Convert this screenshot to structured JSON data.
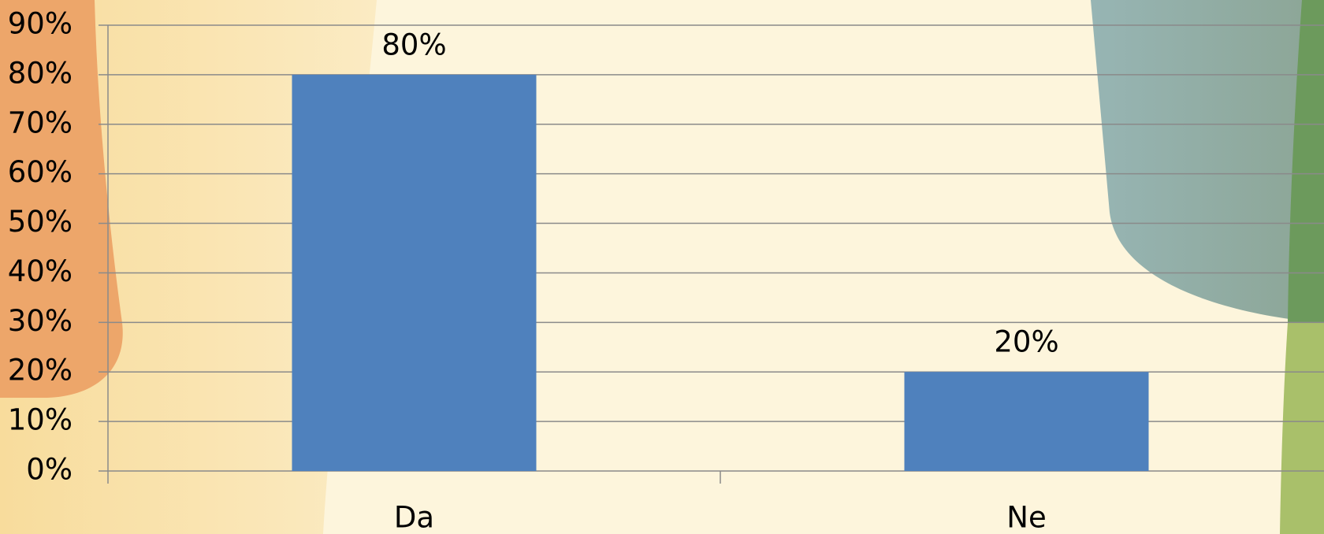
{
  "chart_data": {
    "type": "bar",
    "categories": [
      "Da",
      "Ne"
    ],
    "values": [
      80,
      20
    ],
    "value_labels": [
      "80%",
      "20%"
    ],
    "color": "#4f81bd",
    "ylim": [
      0,
      90
    ],
    "yticks": [
      {
        "value": 0,
        "label": "0%"
      },
      {
        "value": 10,
        "label": "10%"
      },
      {
        "value": 20,
        "label": "20%"
      },
      {
        "value": 30,
        "label": "30%"
      },
      {
        "value": 40,
        "label": "40%"
      },
      {
        "value": 50,
        "label": "50%"
      },
      {
        "value": 60,
        "label": "60%"
      },
      {
        "value": 70,
        "label": "70%"
      },
      {
        "value": 80,
        "label": "80%"
      },
      {
        "value": 90,
        "label": "90%"
      }
    ],
    "grid": true
  }
}
